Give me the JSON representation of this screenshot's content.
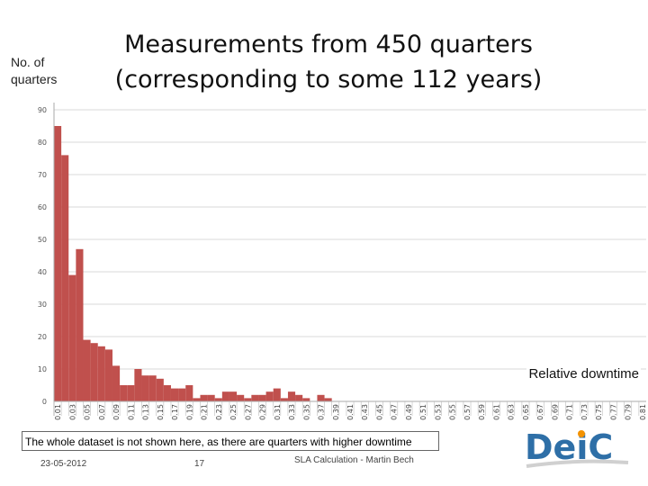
{
  "slide": {
    "title_line1": "Measurements from 450 quarters",
    "title_line2": "(corresponding to some 112 years)",
    "note": "The whole dataset is not shown here, as there are quarters with higher downtime",
    "footer_date": "23-05-2012",
    "footer_page": "17",
    "footer_center": "SLA Calculation - Martin Bech",
    "logo_text": "DeiC",
    "colors": {
      "bar": "#c0504d",
      "grid": "#d9d9d9",
      "logo_blue": "#2e6fa7",
      "logo_orange": "#f39200",
      "logo_grey": "#d0d0d0"
    }
  },
  "chart_data": {
    "type": "bar",
    "title": "Measurements from 450 quarters",
    "subtitle": "(corresponding to some 112 years)",
    "ylabel": "No. of quarters",
    "xlabel": "Relative downtime",
    "ylim": [
      0,
      90
    ],
    "yticks": [
      0,
      10,
      20,
      30,
      40,
      50,
      60,
      70,
      80,
      90
    ],
    "grid": true,
    "categories": [
      "0.01",
      "0.02",
      "0.03",
      "0.04",
      "0.05",
      "0.06",
      "0.07",
      "0.08",
      "0.09",
      "0.10",
      "0.11",
      "0.12",
      "0.13",
      "0.14",
      "0.15",
      "0.16",
      "0.17",
      "0.18",
      "0.19",
      "0.20",
      "0.21",
      "0.22",
      "0.23",
      "0.24",
      "0.25",
      "0.26",
      "0.27",
      "0.28",
      "0.29",
      "0.30",
      "0.31",
      "0.32",
      "0.33",
      "0.34",
      "0.35",
      "0.36",
      "0.37",
      "0.38",
      "0.39",
      "0.40",
      "0.41",
      "0.42",
      "0.43",
      "0.44",
      "0.45",
      "0.46",
      "0.47",
      "0.48",
      "0.49",
      "0.50",
      "0.51",
      "0.52",
      "0.53",
      "0.54",
      "0.55",
      "0.56",
      "0.57",
      "0.58",
      "0.59",
      "0.60",
      "0.61",
      "0.62",
      "0.63",
      "0.64",
      "0.65",
      "0.66",
      "0.67",
      "0.68",
      "0.69",
      "0.70",
      "0.71",
      "0.72",
      "0.73",
      "0.74",
      "0.75",
      "0.76",
      "0.77",
      "0.78",
      "0.79",
      "0.80",
      "0.81"
    ],
    "tick_labels": [
      "0.01",
      "0.03",
      "0.05",
      "0.07",
      "0.09",
      "0.11",
      "0.13",
      "0.15",
      "0.17",
      "0.19",
      "0.21",
      "0.23",
      "0.25",
      "0.27",
      "0.29",
      "0.31",
      "0.33",
      "0.35",
      "0.37",
      "0.39",
      "0.41",
      "0.43",
      "0.45",
      "0.47",
      "0.49",
      "0.51",
      "0.53",
      "0.55",
      "0.57",
      "0.59",
      "0.61",
      "0.63",
      "0.65",
      "0.67",
      "0.69",
      "0.71",
      "0.73",
      "0.75",
      "0.77",
      "0.79",
      "0.81"
    ],
    "values": [
      85,
      76,
      39,
      47,
      19,
      18,
      17,
      16,
      11,
      5,
      5,
      10,
      8,
      8,
      7,
      5,
      4,
      4,
      5,
      1,
      2,
      2,
      1,
      3,
      3,
      2,
      1,
      2,
      2,
      3,
      4,
      1,
      3,
      2,
      1,
      0,
      2,
      1,
      0,
      0,
      0,
      0,
      0,
      0,
      0,
      0,
      0,
      0,
      0,
      0,
      0,
      0,
      0,
      0,
      0,
      0,
      0,
      0,
      0,
      0,
      0,
      0,
      0,
      0,
      0,
      0,
      0,
      0,
      0,
      0,
      0,
      0,
      0,
      0,
      0,
      0,
      0,
      0,
      0,
      0,
      0
    ]
  }
}
